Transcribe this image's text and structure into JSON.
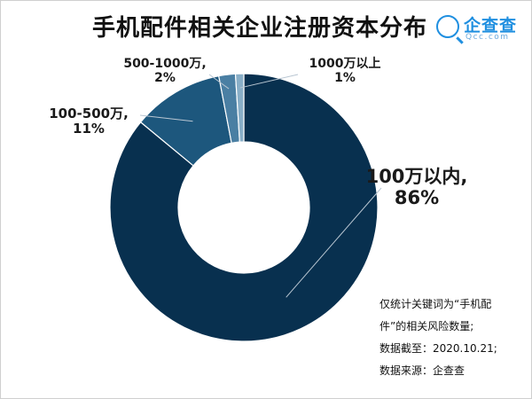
{
  "title": "手机配件相关企业注册资本分布",
  "logo": {
    "name": "企查查",
    "sub": "Qcc.com"
  },
  "chart_data": {
    "type": "donut",
    "title": "手机配件相关企业注册资本分布",
    "categories": [
      "100万以内",
      "100-500万",
      "500-1000万",
      "1000万以上"
    ],
    "values": [
      86,
      11,
      2,
      1
    ],
    "unit": "%",
    "value_labels": [
      "86%",
      "11%",
      "2%",
      "1%"
    ],
    "colors": [
      "#08304f",
      "#1d577d",
      "#4a7fa3",
      "#88aec7"
    ],
    "legend": "none"
  },
  "labels": [
    {
      "name": "100万以内,",
      "value": "86%"
    },
    {
      "name": "100-500万,",
      "value": "11%"
    },
    {
      "name": "500-1000万,",
      "value": "2%"
    },
    {
      "name": "1000万以上",
      "value": "1%"
    }
  ],
  "notes": [
    "仅统计关键词为“手机配",
    "件”的相关风险数量;",
    "数据截至：2020.10.21;",
    "数据来源：企查查"
  ]
}
